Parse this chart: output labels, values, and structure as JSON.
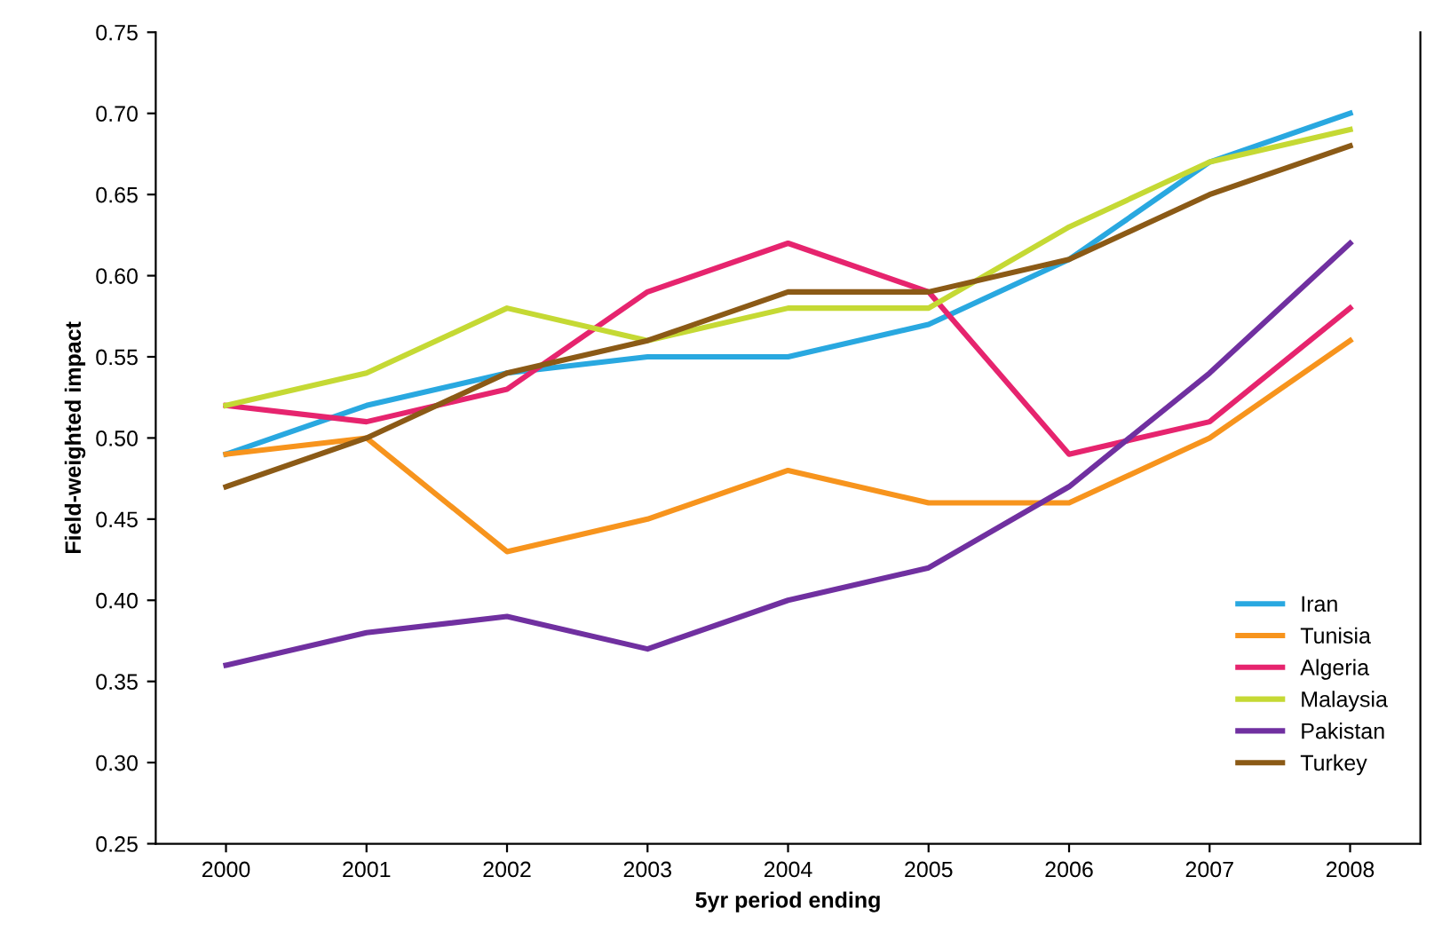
{
  "chart_data": {
    "type": "line",
    "xlabel": "5yr period ending",
    "ylabel": "Field-weighted impact",
    "categories": [
      "2000",
      "2001",
      "2002",
      "2003",
      "2004",
      "2005",
      "2006",
      "2007",
      "2008"
    ],
    "series": [
      {
        "name": "Iran",
        "color": "#29a8e0",
        "values": [
          0.49,
          0.52,
          0.54,
          0.55,
          0.55,
          0.57,
          0.61,
          0.67,
          0.7
        ]
      },
      {
        "name": "Tunisia",
        "color": "#f7941d",
        "values": [
          0.49,
          0.5,
          0.43,
          0.45,
          0.48,
          0.46,
          0.46,
          0.5,
          0.56
        ]
      },
      {
        "name": "Algeria",
        "color": "#e6246e",
        "values": [
          0.52,
          0.51,
          0.53,
          0.59,
          0.62,
          0.59,
          0.49,
          0.51,
          0.58
        ]
      },
      {
        "name": "Malaysia",
        "color": "#c5d934",
        "values": [
          0.52,
          0.54,
          0.58,
          0.56,
          0.58,
          0.58,
          0.63,
          0.67,
          0.69
        ]
      },
      {
        "name": "Pakistan",
        "color": "#7030a0",
        "values": [
          0.36,
          0.38,
          0.39,
          0.37,
          0.4,
          0.42,
          0.47,
          0.54,
          0.62
        ]
      },
      {
        "name": "Turkey",
        "color": "#8b5a16",
        "values": [
          0.47,
          0.5,
          0.54,
          0.56,
          0.59,
          0.59,
          0.61,
          0.65,
          0.68
        ]
      }
    ],
    "ylim": [
      0.25,
      0.75
    ],
    "yticks": [
      {
        "value": 0.25,
        "label": "0.25"
      },
      {
        "value": 0.3,
        "label": "0.30"
      },
      {
        "value": 0.35,
        "label": "0.35"
      },
      {
        "value": 0.4,
        "label": "0.40"
      },
      {
        "value": 0.45,
        "label": "0.45"
      },
      {
        "value": 0.5,
        "label": "0.50"
      },
      {
        "value": 0.55,
        "label": "0.55"
      },
      {
        "value": 0.6,
        "label": "0.60"
      },
      {
        "value": 0.65,
        "label": "0.65"
      },
      {
        "value": 0.7,
        "label": "0.70"
      },
      {
        "value": 0.75,
        "label": "0.75"
      }
    ],
    "grid": false,
    "legend": "bottom right",
    "marker": "none",
    "line_style": "solid"
  }
}
